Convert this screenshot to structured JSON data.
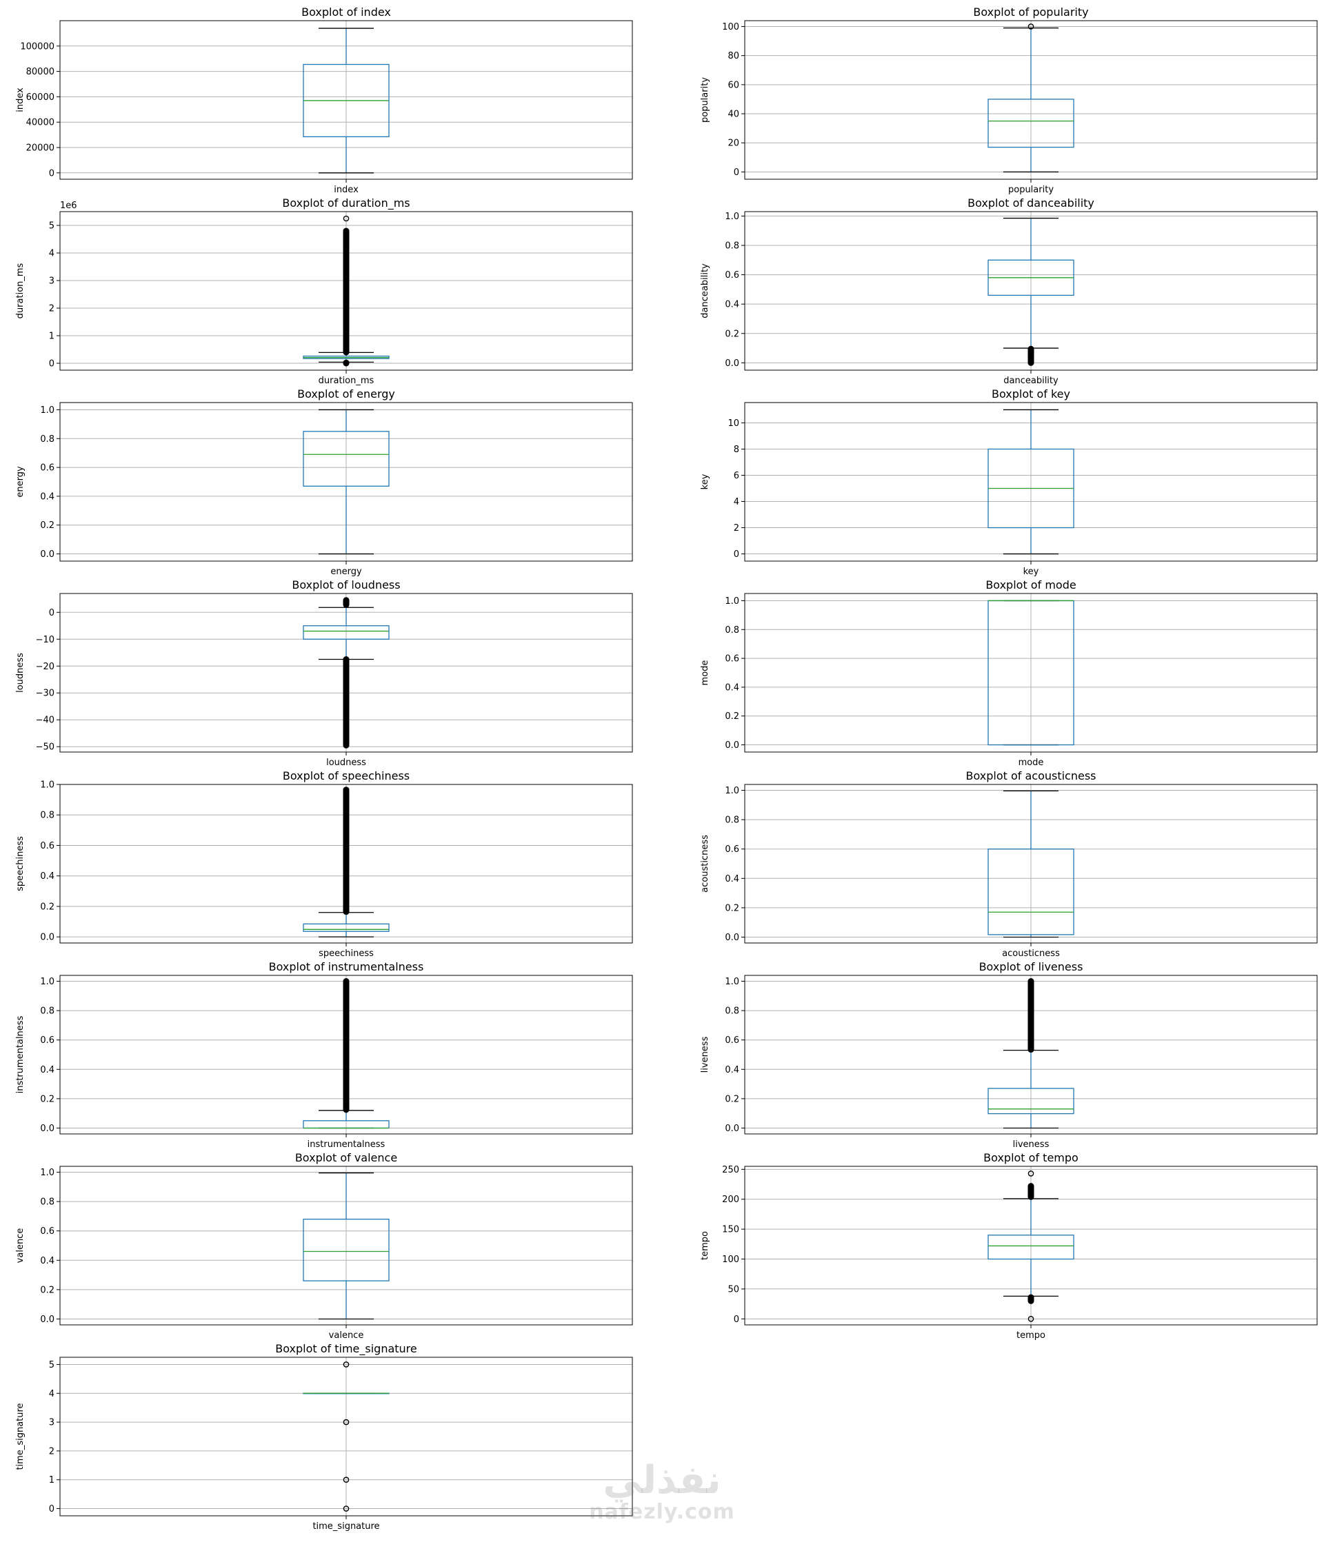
{
  "colors": {
    "box": "#1f77b4",
    "median": "#2ca02c",
    "whisker": "#1f77b4",
    "flier": "#000000",
    "grid": "#b0b0b0",
    "axis": "#000000"
  },
  "watermark": {
    "arabic": "نفذلي",
    "latin": "nafezly.com"
  },
  "chart_data": [
    {
      "type": "box",
      "title": "Boxplot of index",
      "xlabel": "index",
      "ylabel": "index",
      "ylim": [
        -5000,
        120000
      ],
      "yticks": [
        0,
        20000,
        40000,
        60000,
        80000,
        100000
      ],
      "yticklabels": [
        "0",
        "20000",
        "40000",
        "60000",
        "80000",
        "100000"
      ],
      "offset_text": "",
      "grid": true,
      "box": {
        "whisker_low": 0,
        "q1": 28500,
        "median": 57000,
        "q3": 85500,
        "whisker_high": 114000
      },
      "fliers": []
    },
    {
      "type": "box",
      "title": "Boxplot of popularity",
      "xlabel": "popularity",
      "ylabel": "popularity",
      "ylim": [
        -5,
        104
      ],
      "yticks": [
        0,
        20,
        40,
        60,
        80,
        100
      ],
      "yticklabels": [
        "0",
        "20",
        "40",
        "60",
        "80",
        "100"
      ],
      "offset_text": "",
      "grid": true,
      "box": {
        "whisker_low": 0,
        "q1": 17,
        "median": 35,
        "q3": 50,
        "whisker_high": 99
      },
      "fliers": [
        100
      ]
    },
    {
      "type": "box",
      "title": "Boxplot of duration_ms",
      "xlabel": "duration_ms",
      "ylabel": "duration_ms",
      "ylim": [
        -0.25,
        5.5
      ],
      "yticks": [
        0,
        1,
        2,
        3,
        4,
        5
      ],
      "yticklabels": [
        "0",
        "1",
        "2",
        "3",
        "4",
        "5"
      ],
      "offset_text": "1e6",
      "grid": true,
      "box": {
        "whisker_low": 0.04,
        "q1": 0.17,
        "median": 0.21,
        "q3": 0.26,
        "whisker_high": 0.39
      },
      "fliers": [
        0.0,
        0.02,
        0.4,
        0.45,
        0.5,
        0.55,
        0.6,
        0.65,
        0.7,
        0.75,
        0.8,
        0.85,
        0.9,
        0.95,
        1.0,
        1.05,
        1.1,
        1.15,
        1.2,
        1.3,
        1.4,
        1.5,
        1.6,
        1.7,
        1.85,
        2.0,
        2.2,
        2.35,
        2.5,
        2.7,
        2.85,
        3.0,
        3.3,
        3.55,
        3.65,
        3.9,
        4.15,
        4.3,
        4.45,
        4.6,
        4.75,
        4.8,
        5.25
      ]
    },
    {
      "type": "box",
      "title": "Boxplot of danceability",
      "xlabel": "danceability",
      "ylabel": "danceability",
      "ylim": [
        -0.05,
        1.03
      ],
      "yticks": [
        0,
        0.2,
        0.4,
        0.6,
        0.8,
        1.0
      ],
      "yticklabels": [
        "0.0",
        "0.2",
        "0.4",
        "0.6",
        "0.8",
        "1.0"
      ],
      "offset_text": "",
      "grid": true,
      "box": {
        "whisker_low": 0.1,
        "q1": 0.46,
        "median": 0.58,
        "q3": 0.7,
        "whisker_high": 0.985
      },
      "fliers": [
        0.0,
        0.05,
        0.06,
        0.07,
        0.075,
        0.08,
        0.085,
        0.09,
        0.095
      ]
    },
    {
      "type": "box",
      "title": "Boxplot of energy",
      "xlabel": "energy",
      "ylabel": "energy",
      "ylim": [
        -0.05,
        1.05
      ],
      "yticks": [
        0,
        0.2,
        0.4,
        0.6,
        0.8,
        1.0
      ],
      "yticklabels": [
        "0.0",
        "0.2",
        "0.4",
        "0.6",
        "0.8",
        "1.0"
      ],
      "offset_text": "",
      "grid": true,
      "box": {
        "whisker_low": 0,
        "q1": 0.47,
        "median": 0.69,
        "q3": 0.85,
        "whisker_high": 1.0
      },
      "fliers": []
    },
    {
      "type": "box",
      "title": "Boxplot of key",
      "xlabel": "key",
      "ylabel": "key",
      "ylim": [
        -0.55,
        11.55
      ],
      "yticks": [
        0,
        2,
        4,
        6,
        8,
        10
      ],
      "yticklabels": [
        "0",
        "2",
        "4",
        "6",
        "8",
        "10"
      ],
      "offset_text": "",
      "grid": true,
      "box": {
        "whisker_low": 0,
        "q1": 2,
        "median": 5,
        "q3": 8,
        "whisker_high": 11
      },
      "fliers": []
    },
    {
      "type": "box",
      "title": "Boxplot of loudness",
      "xlabel": "loudness",
      "ylabel": "loudness",
      "ylim": [
        -52,
        7
      ],
      "yticks": [
        0,
        -10,
        -20,
        -30,
        -40,
        -50
      ],
      "yticklabels": [
        "0",
        "−10",
        "−20",
        "−30",
        "−40",
        "−50"
      ],
      "offset_text": "",
      "grid": true,
      "box": {
        "whisker_low": -17.5,
        "q1": -10,
        "median": -7,
        "q3": -5,
        "whisker_high": 1.8
      },
      "fliers": [
        4.5,
        2.8,
        -17.5,
        -19,
        -21,
        -23,
        -25,
        -27,
        -29,
        -31,
        -33,
        -35,
        -37,
        -39,
        -41,
        -43,
        -44,
        -46.5,
        -49.5
      ]
    },
    {
      "type": "box",
      "title": "Boxplot of mode",
      "xlabel": "mode",
      "ylabel": "mode",
      "ylim": [
        -0.05,
        1.05
      ],
      "yticks": [
        0,
        0.2,
        0.4,
        0.6,
        0.8,
        1.0
      ],
      "yticklabels": [
        "0.0",
        "0.2",
        "0.4",
        "0.6",
        "0.8",
        "1.0"
      ],
      "offset_text": "",
      "grid": true,
      "box": {
        "whisker_low": 0,
        "q1": 0,
        "median": 1,
        "q3": 1,
        "whisker_high": 1
      },
      "fliers": []
    },
    {
      "type": "box",
      "title": "Boxplot of speechiness",
      "xlabel": "speechiness",
      "ylabel": "speechiness",
      "ylim": [
        -0.04,
        1.0
      ],
      "yticks": [
        0,
        0.2,
        0.4,
        0.6,
        0.8,
        1.0
      ],
      "yticklabels": [
        "0.0",
        "0.2",
        "0.4",
        "0.6",
        "0.8",
        "1.0"
      ],
      "offset_text": "",
      "grid": true,
      "box": {
        "whisker_low": 0,
        "q1": 0.036,
        "median": 0.049,
        "q3": 0.085,
        "whisker_high": 0.16
      },
      "fliers": [
        0.165,
        0.2,
        0.25,
        0.3,
        0.35,
        0.4,
        0.45,
        0.5,
        0.55,
        0.6,
        0.65,
        0.7,
        0.75,
        0.8,
        0.85,
        0.9,
        0.95,
        0.965
      ]
    },
    {
      "type": "box",
      "title": "Boxplot of acousticness",
      "xlabel": "acousticness",
      "ylabel": "acousticness",
      "ylim": [
        -0.04,
        1.04
      ],
      "yticks": [
        0,
        0.2,
        0.4,
        0.6,
        0.8,
        1.0
      ],
      "yticklabels": [
        "0.0",
        "0.2",
        "0.4",
        "0.6",
        "0.8",
        "1.0"
      ],
      "offset_text": "",
      "grid": true,
      "box": {
        "whisker_low": 0,
        "q1": 0.017,
        "median": 0.17,
        "q3": 0.6,
        "whisker_high": 0.996
      },
      "fliers": []
    },
    {
      "type": "box",
      "title": "Boxplot of instrumentalness",
      "xlabel": "instrumentalness",
      "ylabel": "instrumentalness",
      "ylim": [
        -0.04,
        1.04
      ],
      "yticks": [
        0,
        0.2,
        0.4,
        0.6,
        0.8,
        1.0
      ],
      "yticklabels": [
        "0.0",
        "0.2",
        "0.4",
        "0.6",
        "0.8",
        "1.0"
      ],
      "offset_text": "",
      "grid": true,
      "box": {
        "whisker_low": 0,
        "q1": 0,
        "median": 4e-05,
        "q3": 0.05,
        "whisker_high": 0.12
      },
      "fliers": [
        0.125,
        0.15,
        0.2,
        0.25,
        0.3,
        0.35,
        0.4,
        0.45,
        0.5,
        0.55,
        0.6,
        0.65,
        0.7,
        0.75,
        0.8,
        0.85,
        0.9,
        0.95,
        1.0
      ]
    },
    {
      "type": "box",
      "title": "Boxplot of liveness",
      "xlabel": "liveness",
      "ylabel": "liveness",
      "ylim": [
        -0.04,
        1.04
      ],
      "yticks": [
        0,
        0.2,
        0.4,
        0.6,
        0.8,
        1.0
      ],
      "yticklabels": [
        "0.0",
        "0.2",
        "0.4",
        "0.6",
        "0.8",
        "1.0"
      ],
      "offset_text": "",
      "grid": true,
      "box": {
        "whisker_low": 0,
        "q1": 0.098,
        "median": 0.13,
        "q3": 0.27,
        "whisker_high": 0.53
      },
      "fliers": [
        0.535,
        0.58,
        0.62,
        0.66,
        0.7,
        0.74,
        0.78,
        0.82,
        0.86,
        0.9,
        0.94,
        0.97,
        1.0
      ]
    },
    {
      "type": "box",
      "title": "Boxplot of valence",
      "xlabel": "valence",
      "ylabel": "valence",
      "ylim": [
        -0.04,
        1.04
      ],
      "yticks": [
        0,
        0.2,
        0.4,
        0.6,
        0.8,
        1.0
      ],
      "yticklabels": [
        "0.0",
        "0.2",
        "0.4",
        "0.6",
        "0.8",
        "1.0"
      ],
      "offset_text": "",
      "grid": true,
      "box": {
        "whisker_low": 0,
        "q1": 0.26,
        "median": 0.46,
        "q3": 0.68,
        "whisker_high": 0.995
      },
      "fliers": []
    },
    {
      "type": "box",
      "title": "Boxplot of tempo",
      "xlabel": "tempo",
      "ylabel": "tempo",
      "ylim": [
        -10,
        255
      ],
      "yticks": [
        0,
        50,
        100,
        150,
        200,
        250
      ],
      "yticklabels": [
        "0",
        "50",
        "100",
        "150",
        "200",
        "250"
      ],
      "offset_text": "",
      "grid": true,
      "box": {
        "whisker_low": 38,
        "q1": 100,
        "median": 122,
        "q3": 140,
        "whisker_high": 201
      },
      "fliers": [
        243,
        222,
        219,
        216,
        213,
        210,
        207,
        204,
        36,
        33,
        30,
        0
      ]
    },
    {
      "type": "box",
      "title": "Boxplot of time_signature",
      "xlabel": "time_signature",
      "ylabel": "time_signature",
      "ylim": [
        -0.25,
        5.25
      ],
      "yticks": [
        0,
        1,
        2,
        3,
        4,
        5
      ],
      "yticklabels": [
        "0",
        "1",
        "2",
        "3",
        "4",
        "5"
      ],
      "offset_text": "",
      "grid": true,
      "box": {
        "whisker_low": 4,
        "q1": 4,
        "median": 4,
        "q3": 4,
        "whisker_high": 4
      },
      "fliers": [
        5,
        3,
        1,
        0
      ]
    }
  ]
}
